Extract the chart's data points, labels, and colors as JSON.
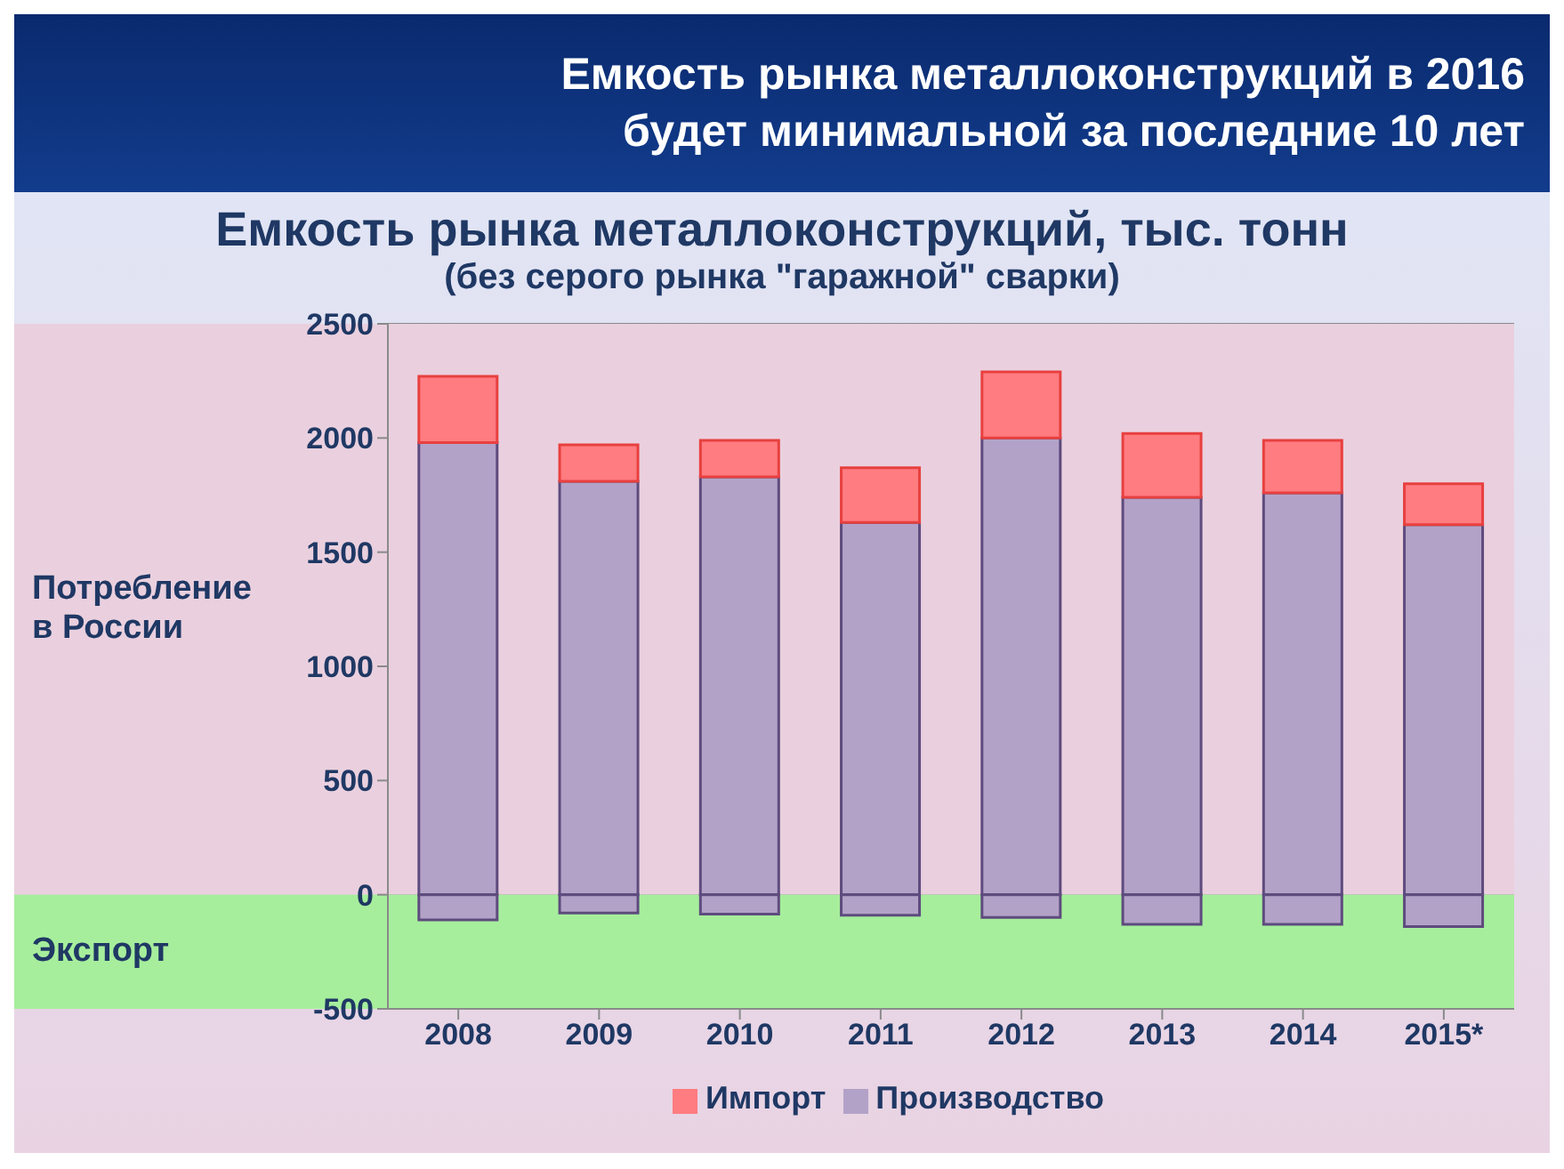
{
  "chart_data": {
    "type": "bar",
    "title": "Емкость рынка металлоконструкций, тыс. тонн",
    "subtitle": "(без серого рынка \"гаражной\" сварки)",
    "annotations": [
      "Емкость рынка металлоконструкций в 2016 будет минимальной за последние 10 лет"
    ],
    "categories": [
      "2008",
      "2009",
      "2010",
      "2011",
      "2012",
      "2013",
      "2014",
      "2015*"
    ],
    "stacked": true,
    "series": [
      {
        "name": "Производство",
        "color": "#b3a2c7",
        "values": [
          1980,
          1810,
          1830,
          1630,
          2000,
          1740,
          1760,
          1620
        ]
      },
      {
        "name": "Импорт",
        "color": "#ff7c80",
        "values": [
          290,
          160,
          160,
          240,
          290,
          280,
          230,
          180
        ]
      },
      {
        "color": "#b3a2c7",
        "values": [
          -110,
          -80,
          -85,
          -90,
          -100,
          -130,
          -130,
          -140
        ]
      }
    ],
    "bands": [
      {
        "axis": "y",
        "from": 0,
        "to": 2500,
        "label": "Потребление в России",
        "color": "#ead0de"
      },
      {
        "axis": "y",
        "from": -500,
        "to": 0,
        "label": "Экспорт",
        "color": "#a6ee9c"
      }
    ],
    "ylim": [
      -500,
      2500
    ],
    "yticks": [
      -500,
      0,
      500,
      1000,
      1500,
      2000,
      2500
    ],
    "grid": "y",
    "legend": "bottom"
  }
}
